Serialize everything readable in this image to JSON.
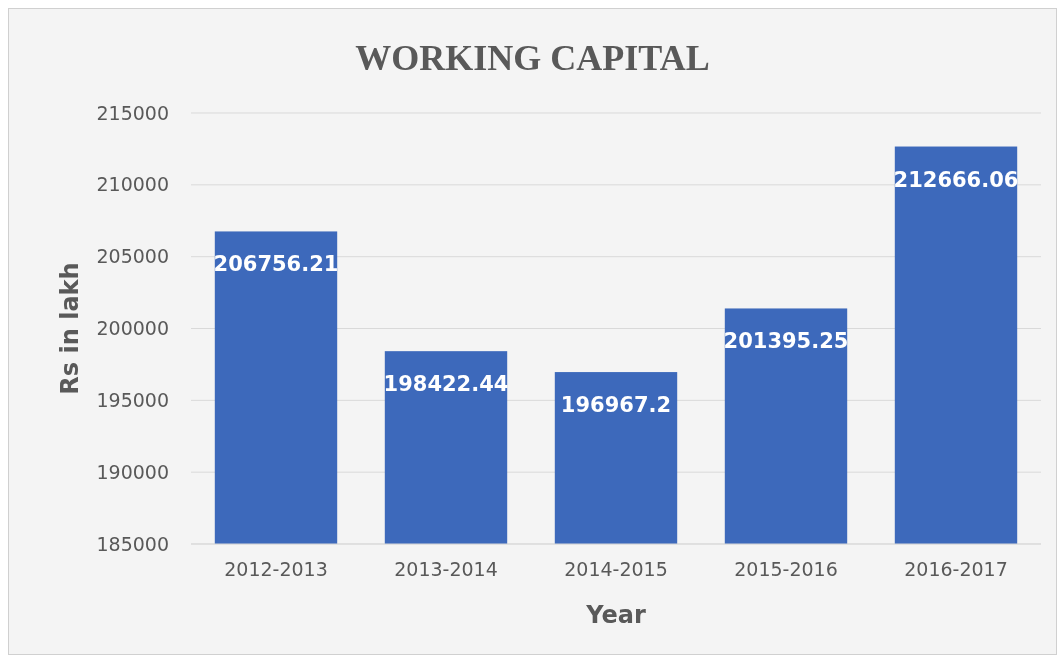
{
  "chart_data": {
    "type": "bar",
    "title": "WORKING CAPITAL",
    "xlabel": "Year",
    "ylabel": "Rs in lakh",
    "categories": [
      "2012-2013",
      "2013-2014",
      "2014-2015",
      "2015-2016",
      "2016-2017"
    ],
    "values": [
      206756.21,
      198422.44,
      196967.2,
      201395.25,
      212666.06
    ],
    "color": "#3d69bb",
    "ylim": [
      185000,
      215000
    ],
    "yticks": [
      185000,
      190000,
      195000,
      200000,
      205000,
      210000,
      215000
    ],
    "grid": "y",
    "data_labels": true
  }
}
